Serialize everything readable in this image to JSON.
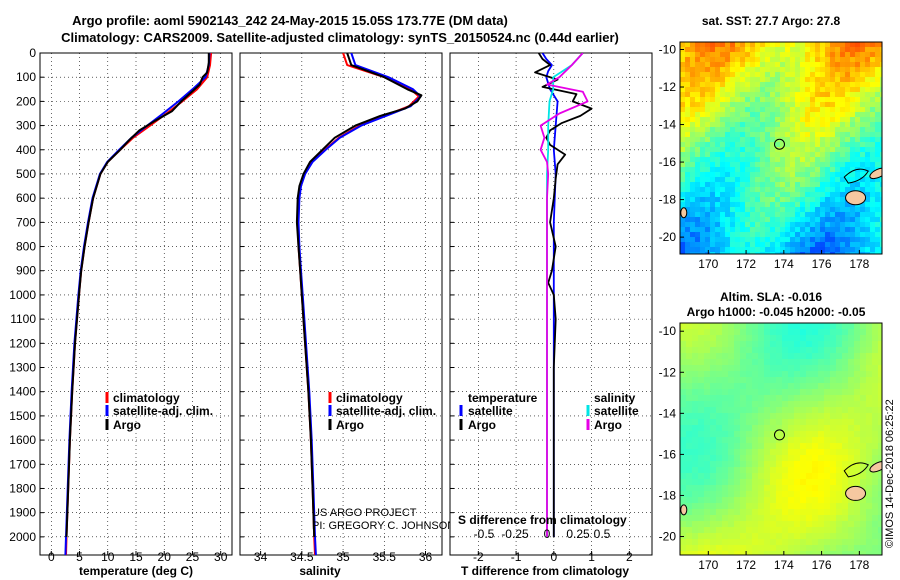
{
  "title_line1": "Argo profile: aoml 5902143_242 24-May-2015 15.05S 173.77E (DM data)",
  "title_line2": "Climatology: CARS2009. Satellite-adjusted climatology: synTS_20150524.nc (0.44d earlier)",
  "watermark": "©IMOS 14-Dec-2018 06:25:22",
  "credit_line1": "US ARGO PROJECT",
  "credit_line2": "PI: GREGORY C. JOHNSON",
  "colors": {
    "climatology": "#ff0000",
    "satellite": "#0000ff",
    "argo": "#000000",
    "sal_satellite": "#00e5e5",
    "sal_argo": "#e600e6"
  },
  "chart_data": [
    {
      "type": "line",
      "name": "temperature-profile",
      "xlabel": "temperature (deg C)",
      "ylabel": "depth",
      "xlim": [
        -2,
        32
      ],
      "ylim": [
        2075,
        0
      ],
      "xticks": [
        0,
        5,
        10,
        15,
        20,
        25,
        30
      ],
      "yticks": [
        0,
        100,
        200,
        300,
        400,
        500,
        600,
        700,
        800,
        900,
        1000,
        1100,
        1200,
        1300,
        1400,
        1500,
        1600,
        1700,
        1800,
        1900,
        2000
      ],
      "legend": [
        "climatology",
        "satellite-adj. clim.",
        "Argo"
      ],
      "series": [
        {
          "name": "climatology",
          "depth": [
            0,
            50,
            100,
            150,
            200,
            250,
            300,
            350,
            400,
            450,
            500,
            600,
            700,
            800,
            900,
            1000,
            1200,
            1400,
            1600,
            1800,
            2000,
            2075
          ],
          "values": [
            28.3,
            28.1,
            27.6,
            25.8,
            23.2,
            20.4,
            17.5,
            14.5,
            12.2,
            10.0,
            8.7,
            7.4,
            6.6,
            5.9,
            5.3,
            4.9,
            4.2,
            3.7,
            3.3,
            3.0,
            2.7,
            2.6
          ]
        },
        {
          "name": "satellite-adj. clim.",
          "depth": [
            0,
            50,
            100,
            150,
            200,
            250,
            300,
            350,
            400,
            450,
            500,
            600,
            700,
            800,
            900,
            1000,
            1200,
            1400,
            1600,
            1800,
            2000,
            2075
          ],
          "values": [
            28.0,
            27.9,
            27.3,
            25.0,
            22.5,
            19.8,
            17.0,
            14.2,
            12.0,
            9.9,
            8.6,
            7.3,
            6.5,
            5.8,
            5.2,
            4.8,
            4.1,
            3.6,
            3.2,
            2.9,
            2.6,
            2.5
          ]
        },
        {
          "name": "Argo",
          "depth": [
            0,
            40,
            80,
            100,
            130,
            160,
            200,
            240,
            280,
            320,
            360,
            400,
            450,
            500,
            600,
            700,
            800,
            900,
            1000,
            1200,
            1400,
            1600,
            1800,
            2000
          ],
          "values": [
            27.9,
            27.9,
            27.6,
            26.8,
            26.3,
            24.9,
            23.0,
            21.4,
            18.4,
            15.6,
            13.8,
            12.2,
            10.0,
            8.7,
            7.4,
            6.6,
            5.9,
            5.3,
            4.9,
            4.2,
            3.7,
            3.3,
            3.0,
            2.7
          ]
        }
      ]
    },
    {
      "type": "line",
      "name": "salinity-profile",
      "xlabel": "salinity",
      "xlim": [
        33.75,
        36.2
      ],
      "ylim": [
        2075,
        0
      ],
      "xticks": [
        34,
        34.5,
        35,
        35.5,
        36
      ],
      "xticklabels": [
        "34",
        "34.5",
        "35",
        "35.5",
        "36"
      ],
      "legend": [
        "climatology",
        "satellite-adj. clim.",
        "Argo"
      ],
      "series": [
        {
          "name": "climatology",
          "depth": [
            0,
            50,
            100,
            150,
            180,
            220,
            260,
            300,
            350,
            400,
            450,
            500,
            550,
            600,
            700,
            800,
            900,
            1000,
            1200,
            1400,
            1600,
            1800,
            2000,
            2075
          ],
          "values": [
            35.0,
            35.05,
            35.5,
            35.82,
            35.92,
            35.8,
            35.5,
            35.2,
            34.95,
            34.78,
            34.62,
            34.53,
            34.48,
            34.46,
            34.45,
            34.46,
            34.48,
            34.5,
            34.54,
            34.58,
            34.61,
            34.63,
            34.65,
            34.66
          ]
        },
        {
          "name": "satellite-adj. clim.",
          "depth": [
            0,
            50,
            100,
            150,
            180,
            220,
            260,
            300,
            350,
            400,
            450,
            500,
            550,
            600,
            700,
            800,
            900,
            1000,
            1200,
            1400,
            1600,
            1800,
            2000,
            2075
          ],
          "values": [
            35.1,
            35.15,
            35.55,
            35.85,
            35.94,
            35.82,
            35.52,
            35.22,
            34.96,
            34.79,
            34.63,
            34.54,
            34.49,
            34.47,
            34.46,
            34.47,
            34.49,
            34.51,
            34.55,
            34.59,
            34.62,
            34.64,
            34.66,
            34.67
          ]
        },
        {
          "name": "Argo",
          "depth": [
            0,
            50,
            100,
            150,
            175,
            200,
            230,
            260,
            300,
            350,
            400,
            450,
            500,
            550,
            600,
            700,
            800,
            900,
            1000,
            1200,
            1400,
            1600,
            1800,
            2000
          ],
          "values": [
            35.05,
            35.1,
            35.5,
            35.78,
            35.95,
            35.9,
            35.75,
            35.45,
            35.15,
            34.9,
            34.75,
            34.6,
            34.52,
            34.47,
            34.45,
            34.44,
            34.46,
            34.48,
            34.5,
            34.54,
            34.58,
            34.61,
            34.63,
            34.65
          ]
        }
      ]
    },
    {
      "type": "line",
      "name": "difference-profile",
      "xlabel": "T difference from climatology",
      "xlabel_top": "S difference from climatology",
      "xlim": [
        -2.75,
        2.6
      ],
      "ylim": [
        2075,
        0
      ],
      "xticks": [
        -2,
        -1,
        0,
        1,
        2
      ],
      "xticklabels": [
        "-2",
        "-1",
        "0",
        "1",
        "2"
      ],
      "sticks": [
        -0.5,
        -0.25,
        0,
        0.25,
        0.5
      ],
      "sticklabels": [
        "-0.5",
        "-0.25",
        "0",
        "0.25",
        "0.5"
      ],
      "legend_temperature_title": "temperature",
      "legend_salinity_title": "salinity",
      "legend_satellite": "satellite",
      "legend_argo": "Argo",
      "series": [
        {
          "name": "T satellite",
          "depth": [
            0,
            25,
            50,
            75,
            100,
            150,
            200,
            300,
            400,
            500,
            700,
            900,
            1100,
            1300,
            1500,
            1700,
            1900,
            2000
          ],
          "values": [
            -0.3,
            -0.2,
            -0.05,
            -0.15,
            -0.2,
            -0.1,
            0.1,
            0.05,
            0.0,
            0.05,
            0.0,
            0.0,
            0.0,
            0.0,
            0.0,
            0.0,
            0.0,
            0.0
          ]
        },
        {
          "name": "T Argo",
          "depth": [
            0,
            25,
            50,
            80,
            110,
            140,
            170,
            200,
            230,
            260,
            290,
            320,
            350,
            380,
            420,
            460,
            520,
            600,
            700,
            800,
            900,
            950,
            1000,
            1100,
            1300,
            1500,
            1700,
            1900,
            2000
          ],
          "values": [
            -0.4,
            -0.3,
            -0.1,
            -0.5,
            0.1,
            -0.3,
            0.6,
            0.5,
            1.0,
            0.7,
            0.2,
            -0.1,
            -0.2,
            -0.1,
            0.3,
            0.1,
            0.05,
            0.0,
            -0.1,
            0.05,
            -0.05,
            -0.15,
            0.0,
            0.05,
            0.0,
            0.0,
            0.0,
            0.0,
            0.0
          ]
        },
        {
          "name": "S satellite",
          "depth": [
            0,
            50,
            100,
            150,
            200,
            300,
            400,
            500,
            700,
            1000,
            1500,
            2000
          ],
          "values": [
            0.3,
            0.2,
            0.05,
            0.05,
            0.02,
            0.01,
            0.01,
            0.0,
            0.0,
            0.0,
            0.0,
            0.0
          ]
        },
        {
          "name": "S Argo",
          "depth": [
            0,
            50,
            100,
            130,
            160,
            200,
            250,
            300,
            350,
            400,
            450,
            500,
            600,
            800,
            1000,
            1500,
            2000
          ],
          "values": [
            0.3,
            0.2,
            0.1,
            0.0,
            0.3,
            0.35,
            0.1,
            -0.05,
            -0.02,
            -0.05,
            0.0,
            0.01,
            0.0,
            0.0,
            0.0,
            0.0,
            0.0
          ]
        }
      ]
    },
    {
      "type": "heatmap",
      "name": "sst-map",
      "title": "sat. SST: 27.7 Argo: 27.8",
      "xlim": [
        168.5,
        179.2
      ],
      "ylim": [
        -20.9,
        -9.6
      ],
      "xticks": [
        170,
        172,
        174,
        176,
        178
      ],
      "yticks": [
        -10,
        -12,
        -14,
        -16,
        -18,
        -20
      ],
      "float_position": [
        173.77,
        -15.05
      ]
    },
    {
      "type": "heatmap",
      "name": "sla-map",
      "title_line1": "Altim. SLA: -0.016",
      "title_line2": "Argo h1000: -0.045 h2000: -0.05",
      "xlim": [
        168.5,
        179.2
      ],
      "ylim": [
        -20.9,
        -9.6
      ],
      "xticks": [
        170,
        172,
        174,
        176,
        178
      ],
      "yticks": [
        -10,
        -12,
        -14,
        -16,
        -18,
        -20
      ],
      "float_position": [
        173.77,
        -15.05
      ]
    }
  ]
}
